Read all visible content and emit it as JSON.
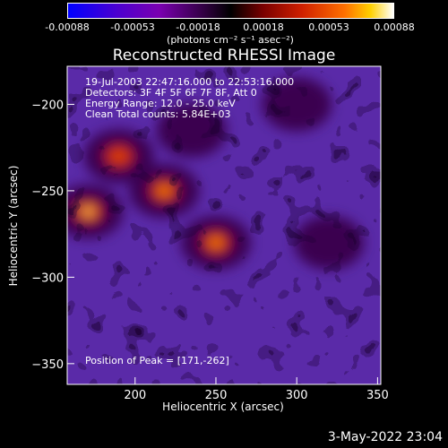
{
  "colorbar": {
    "ticks": [
      "-0.00088",
      "-0.00053",
      "-0.00018",
      "0.00018",
      "0.00053",
      "0.00088"
    ],
    "unit_label": "(photons cm⁻² s⁻¹ asec⁻²)"
  },
  "chart_data": {
    "type": "heatmap",
    "title": "Reconstructed RHESSI Image",
    "xlabel": "Heliocentric X (arcsec)",
    "ylabel": "Heliocentric Y (arcsec)",
    "xlim": [
      158,
      352
    ],
    "ylim": [
      -362,
      -178
    ],
    "xticks": [
      200,
      250,
      300,
      350
    ],
    "yticks": [
      -200,
      -250,
      -300,
      -350
    ],
    "zlim": [
      -0.00088,
      0.00088
    ],
    "annotations": {
      "time_range": "19-Jul-2003 22:47:16.000 to 22:53:16.000",
      "detectors": "Detectors: 3F 4F 5F 6F 7F 8F, Att 0",
      "energy": "Energy Range: 12.0 - 25.0 keV",
      "method": "Clean    Total counts: 5.84E+03",
      "peak": "Position of Peak = [171,-262]"
    },
    "bright_sources": [
      {
        "x": 171,
        "y": -262,
        "relative_intensity": 1.0
      },
      {
        "x": 218,
        "y": -250,
        "relative_intensity": 0.95
      },
      {
        "x": 250,
        "y": -280,
        "relative_intensity": 0.9
      },
      {
        "x": 190,
        "y": -230,
        "relative_intensity": 0.75
      },
      {
        "x": 235,
        "y": -215,
        "relative_intensity": 0.6
      },
      {
        "x": 300,
        "y": -200,
        "relative_intensity": 0.55
      },
      {
        "x": 320,
        "y": -280,
        "relative_intensity": 0.45
      }
    ]
  },
  "footer": {
    "timestamp": "3-May-2022 23:04"
  }
}
